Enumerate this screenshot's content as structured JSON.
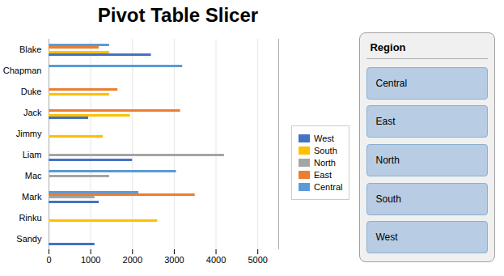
{
  "chart_data": {
    "type": "bar",
    "orientation": "horizontal",
    "title": "Pivot Table Slicer",
    "categories": [
      "Sandy",
      "Rinku",
      "Mark",
      "Mac",
      "Liam",
      "Jimmy",
      "Jack",
      "Duke",
      "Chapman",
      "Blake"
    ],
    "series": [
      {
        "name": "West",
        "color": "#4472c4",
        "values": [
          1100,
          0,
          1200,
          0,
          2000,
          0,
          950,
          0,
          0,
          2450
        ]
      },
      {
        "name": "South",
        "color": "#ffc000",
        "values": [
          0,
          2600,
          0,
          0,
          0,
          1300,
          1950,
          1450,
          0,
          1450
        ]
      },
      {
        "name": "North",
        "color": "#a5a5a5",
        "values": [
          0,
          0,
          1100,
          1450,
          4200,
          0,
          0,
          0,
          0,
          0
        ]
      },
      {
        "name": "East",
        "color": "#ed7d31",
        "values": [
          0,
          0,
          3500,
          0,
          0,
          0,
          3150,
          1650,
          0,
          1200
        ]
      },
      {
        "name": "Central",
        "color": "#5b9bd5",
        "values": [
          0,
          0,
          2150,
          3050,
          0,
          0,
          0,
          0,
          3200,
          1450
        ]
      }
    ],
    "xlim": [
      0,
      5500
    ],
    "xticks": [
      0,
      1000,
      2000,
      3000,
      4000,
      5000
    ],
    "grid": true,
    "legend": "right",
    "annotations": [
      "Region",
      "Central",
      "East",
      "North",
      "South",
      "West"
    ]
  }
}
